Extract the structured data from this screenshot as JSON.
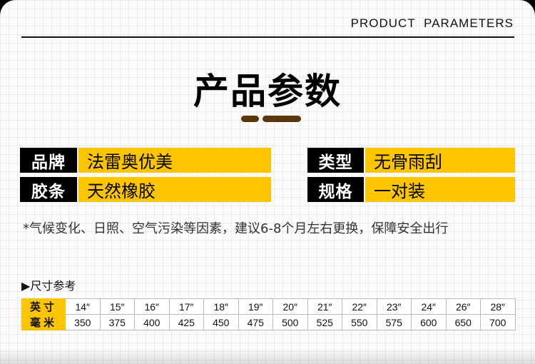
{
  "header": {
    "english": "PRODUCT PARAMETERS",
    "title": "产品参数"
  },
  "params": [
    {
      "label": "品牌",
      "value": "法雷奥优美"
    },
    {
      "label": "类型",
      "value": "无骨雨刮"
    },
    {
      "label": "胶条",
      "value": "天然橡胶"
    },
    {
      "label": "规格",
      "value": "一对装"
    }
  ],
  "note": "*气候变化、日照、空气污染等因素，建议6-8个月左右更换，保障安全出行",
  "size_ref": {
    "title": "尺寸参考",
    "row_labels": [
      "英寸",
      "毫米"
    ],
    "inches": [
      "14″",
      "15″",
      "16″",
      "17″",
      "18″",
      "19″",
      "20″",
      "21″",
      "22″",
      "23″",
      "24″",
      "26″",
      "28″"
    ],
    "mm": [
      "350",
      "375",
      "400",
      "425",
      "450",
      "475",
      "500",
      "525",
      "550",
      "575",
      "600",
      "650",
      "700"
    ]
  },
  "colors": {
    "accent": "#fdc400",
    "pill": "#5b3608"
  }
}
